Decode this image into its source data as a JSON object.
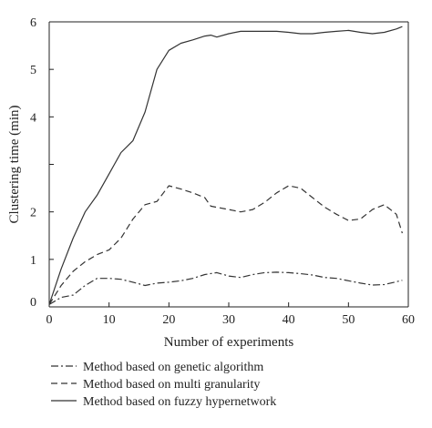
{
  "chart_data": {
    "type": "line",
    "xlabel": "Number of experiments",
    "ylabel": "Clustering time (min)",
    "xlim": [
      0,
      60
    ],
    "ylim": [
      0,
      6
    ],
    "xticks": [
      0,
      10,
      20,
      30,
      40,
      50,
      60
    ],
    "yticks": [
      1,
      2,
      3,
      4,
      5,
      6
    ],
    "x_tick_labels": [
      "0",
      "10",
      "20",
      "30",
      "40",
      "50",
      "60"
    ],
    "y_tick_labels": [
      "1",
      "2",
      "4",
      "5",
      "6"
    ],
    "y_origin_label": "0",
    "grid": false,
    "legend_position": "bottom",
    "series": [
      {
        "name": "Method based on genetic algorithm",
        "style": "dashdot",
        "color": "#333333",
        "x": [
          0,
          2,
          4,
          6,
          8,
          10,
          12,
          14,
          16,
          18,
          20,
          22,
          24,
          26,
          28,
          30,
          32,
          34,
          36,
          38,
          40,
          42,
          44,
          46,
          48,
          50,
          52,
          54,
          56,
          58,
          59
        ],
        "y": [
          0.05,
          0.2,
          0.25,
          0.45,
          0.6,
          0.6,
          0.58,
          0.52,
          0.45,
          0.5,
          0.52,
          0.55,
          0.6,
          0.68,
          0.72,
          0.65,
          0.62,
          0.68,
          0.72,
          0.73,
          0.72,
          0.7,
          0.67,
          0.62,
          0.6,
          0.55,
          0.5,
          0.46,
          0.47,
          0.53,
          0.56
        ]
      },
      {
        "name": "Method based on multi granularity",
        "style": "dashed",
        "color": "#333333",
        "x": [
          0,
          2,
          4,
          6,
          8,
          10,
          12,
          14,
          16,
          18,
          20,
          22,
          24,
          26,
          27,
          30,
          32,
          34,
          36,
          38,
          40,
          42,
          44,
          46,
          48,
          50,
          52,
          54,
          56,
          58,
          59
        ],
        "y": [
          0.05,
          0.45,
          0.75,
          0.95,
          1.1,
          1.2,
          1.45,
          1.85,
          2.15,
          2.22,
          2.55,
          2.48,
          2.4,
          2.3,
          2.12,
          2.05,
          2.0,
          2.05,
          2.2,
          2.4,
          2.55,
          2.5,
          2.3,
          2.1,
          1.95,
          1.82,
          1.85,
          2.05,
          2.15,
          1.95,
          1.55
        ]
      },
      {
        "name": "Method based on fuzzy hypernetwork",
        "style": "solid",
        "color": "#333333",
        "x": [
          0,
          2,
          4,
          6,
          8,
          10,
          12,
          14,
          16,
          18,
          20,
          22,
          24,
          26,
          27,
          28,
          30,
          32,
          34,
          36,
          38,
          40,
          42,
          44,
          46,
          48,
          50,
          52,
          54,
          56,
          58,
          59
        ],
        "y": [
          0.05,
          0.8,
          1.45,
          2.0,
          2.35,
          2.8,
          3.25,
          3.5,
          4.1,
          5.0,
          5.4,
          5.55,
          5.62,
          5.7,
          5.72,
          5.68,
          5.75,
          5.8,
          5.8,
          5.8,
          5.8,
          5.78,
          5.75,
          5.75,
          5.78,
          5.8,
          5.82,
          5.78,
          5.75,
          5.78,
          5.85,
          5.9
        ]
      }
    ]
  }
}
